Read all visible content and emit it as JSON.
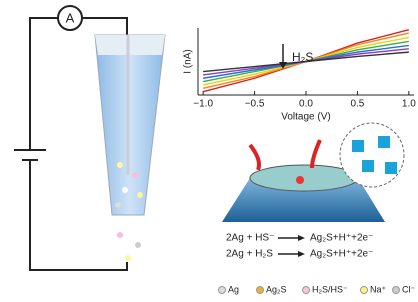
{
  "chart_data": {
    "type": "line",
    "ylabel": "I (nA)",
    "xlabel": "Voltage (V)",
    "annotation": "H₂S",
    "x": [
      -1.0,
      -0.5,
      0.0,
      0.5,
      1.0
    ],
    "xlim": [
      -1.05,
      1.05
    ],
    "xticks": [
      {
        "value": -1.0,
        "label": "−1.0"
      },
      {
        "value": -0.5,
        "label": "−0.5"
      },
      {
        "value": 0.0,
        "label": "0.0"
      },
      {
        "value": 0.5,
        "label": "0.5"
      },
      {
        "value": 1.0,
        "label": "1.0"
      }
    ],
    "ylim": [
      -1,
      1
    ],
    "series": [
      {
        "color": "#e02020",
        "values": [
          -0.9,
          -0.5,
          0,
          0.55,
          0.95
        ]
      },
      {
        "color": "#f08a1c",
        "values": [
          -0.8,
          -0.45,
          0,
          0.5,
          0.85
        ]
      },
      {
        "color": "#e8d21a",
        "values": [
          -0.7,
          -0.38,
          0,
          0.42,
          0.72
        ]
      },
      {
        "color": "#3fae3f",
        "values": [
          -0.6,
          -0.3,
          0,
          0.35,
          0.6
        ]
      },
      {
        "color": "#2a6fd6",
        "values": [
          -0.5,
          -0.25,
          0,
          0.28,
          0.48
        ]
      },
      {
        "color": "#8a3fc4",
        "values": [
          -0.4,
          -0.2,
          0,
          0.22,
          0.38
        ]
      },
      {
        "color": "#333333",
        "values": [
          -0.3,
          -0.15,
          0,
          0.15,
          0.28
        ]
      }
    ]
  },
  "circuit": {
    "meter": "A"
  },
  "equations": [
    {
      "left": "2Ag + HS⁻",
      "right": "Ag₂S+H⁺+2e⁻"
    },
    {
      "left": "2Ag + H₂S",
      "right": "Ag₂S+H⁺+2e⁻"
    }
  ],
  "legend": [
    "Ag",
    "Ag₂S",
    "H₂S/HS⁻",
    "Na⁺",
    "Cl⁻"
  ]
}
